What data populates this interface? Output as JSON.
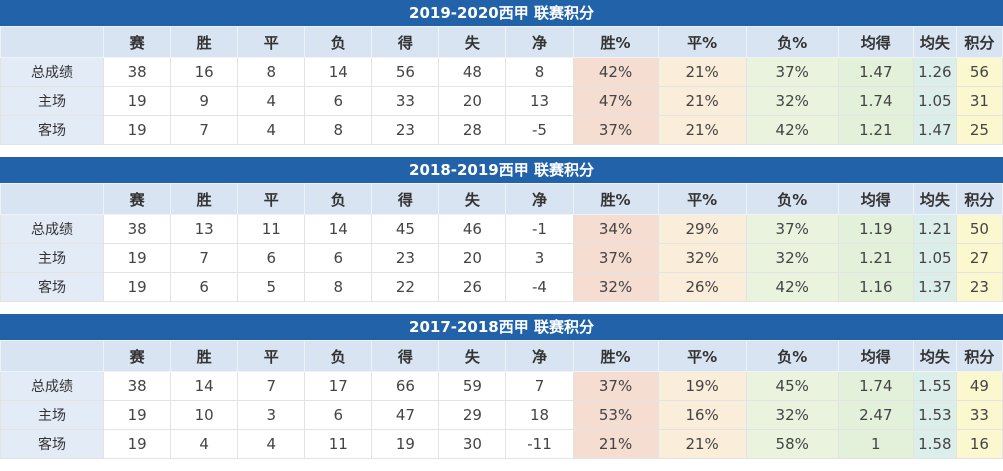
{
  "style_tokens": {
    "title_bar_bg": "#2262a8",
    "title_text": "#ffffff",
    "header_row_bg": "#d9e4f2",
    "row_label_bg": "#e3ebf7",
    "win_pct_bg": "#f5ddd2",
    "draw_pct_bg": "#faeeda",
    "loss_pct_bg": "#eaf3de",
    "avg_for_bg": "#e4f1da",
    "avg_against_bg": "#dceeea",
    "points_bg": "#fbf8d0"
  },
  "chart_data": [
    {
      "type": "table",
      "title": "2019-2020西甲 联赛积分",
      "columns": [
        "",
        "赛",
        "胜",
        "平",
        "负",
        "得",
        "失",
        "净",
        "胜%",
        "平%",
        "负%",
        "均得",
        "均失",
        "积分"
      ],
      "rows": [
        {
          "label": "总成绩",
          "values": [
            "38",
            "16",
            "8",
            "14",
            "56",
            "48",
            "8",
            "42%",
            "21%",
            "37%",
            "1.47",
            "1.26",
            "56"
          ]
        },
        {
          "label": "主场",
          "values": [
            "19",
            "9",
            "4",
            "6",
            "33",
            "20",
            "13",
            "47%",
            "21%",
            "32%",
            "1.74",
            "1.05",
            "31"
          ]
        },
        {
          "label": "客场",
          "values": [
            "19",
            "7",
            "4",
            "8",
            "23",
            "28",
            "-5",
            "37%",
            "21%",
            "42%",
            "1.21",
            "1.47",
            "25"
          ]
        }
      ]
    },
    {
      "type": "table",
      "title": "2018-2019西甲 联赛积分",
      "columns": [
        "",
        "赛",
        "胜",
        "平",
        "负",
        "得",
        "失",
        "净",
        "胜%",
        "平%",
        "负%",
        "均得",
        "均失",
        "积分"
      ],
      "rows": [
        {
          "label": "总成绩",
          "values": [
            "38",
            "13",
            "11",
            "14",
            "45",
            "46",
            "-1",
            "34%",
            "29%",
            "37%",
            "1.19",
            "1.21",
            "50"
          ]
        },
        {
          "label": "主场",
          "values": [
            "19",
            "7",
            "6",
            "6",
            "23",
            "20",
            "3",
            "37%",
            "32%",
            "32%",
            "1.21",
            "1.05",
            "27"
          ]
        },
        {
          "label": "客场",
          "values": [
            "19",
            "6",
            "5",
            "8",
            "22",
            "26",
            "-4",
            "32%",
            "26%",
            "42%",
            "1.16",
            "1.37",
            "23"
          ]
        }
      ]
    },
    {
      "type": "table",
      "title": "2017-2018西甲 联赛积分",
      "columns": [
        "",
        "赛",
        "胜",
        "平",
        "负",
        "得",
        "失",
        "净",
        "胜%",
        "平%",
        "负%",
        "均得",
        "均失",
        "积分"
      ],
      "rows": [
        {
          "label": "总成绩",
          "values": [
            "38",
            "14",
            "7",
            "17",
            "66",
            "59",
            "7",
            "37%",
            "19%",
            "45%",
            "1.74",
            "1.55",
            "49"
          ]
        },
        {
          "label": "主场",
          "values": [
            "19",
            "10",
            "3",
            "6",
            "47",
            "29",
            "18",
            "53%",
            "16%",
            "32%",
            "2.47",
            "1.53",
            "33"
          ]
        },
        {
          "label": "客场",
          "values": [
            "19",
            "4",
            "4",
            "11",
            "19",
            "30",
            "-11",
            "21%",
            "21%",
            "58%",
            "1",
            "1.58",
            "16"
          ]
        }
      ]
    }
  ]
}
